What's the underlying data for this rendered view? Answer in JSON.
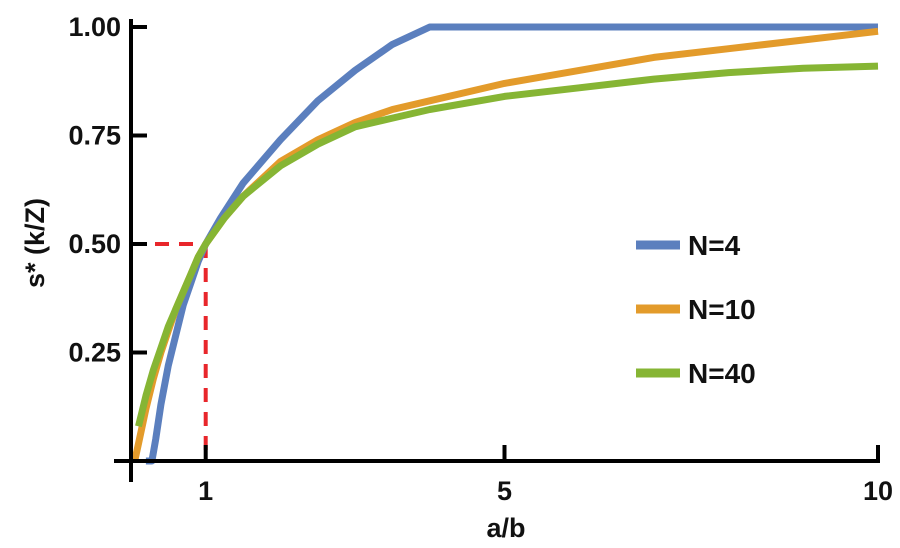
{
  "chart_data": {
    "type": "line",
    "xlabel": "a/b",
    "ylabel": "s* (k/Z)",
    "xlim": [
      0,
      10
    ],
    "ylim": [
      0,
      1.0
    ],
    "x_ticks": [
      {
        "value": 1,
        "label": "1"
      },
      {
        "value": 5,
        "label": "5"
      },
      {
        "value": 10,
        "label": "10"
      }
    ],
    "y_ticks": [
      {
        "value": 0.25,
        "label": "0.25"
      },
      {
        "value": 0.5,
        "label": "0.50"
      },
      {
        "value": 0.75,
        "label": "0.75"
      },
      {
        "value": 1.0,
        "label": "1.00"
      }
    ],
    "legend_position": "right",
    "series": [
      {
        "name": "N=4",
        "color": "#5b7fbe",
        "points": [
          [
            0.2,
            0
          ],
          [
            0.28,
            0
          ],
          [
            0.33,
            0.05
          ],
          [
            0.4,
            0.13
          ],
          [
            0.5,
            0.22
          ],
          [
            0.6,
            0.29
          ],
          [
            0.7,
            0.36
          ],
          [
            0.8,
            0.41
          ],
          [
            0.9,
            0.46
          ],
          [
            1.0,
            0.5
          ],
          [
            1.2,
            0.56
          ],
          [
            1.5,
            0.64
          ],
          [
            2.0,
            0.74
          ],
          [
            2.5,
            0.83
          ],
          [
            3.0,
            0.9
          ],
          [
            3.5,
            0.96
          ],
          [
            4.0,
            1.0
          ],
          [
            10,
            1.0
          ]
        ]
      },
      {
        "name": "N=10",
        "color": "#e39b2b",
        "points": [
          [
            0.05,
            0
          ],
          [
            0.1,
            0.04
          ],
          [
            0.2,
            0.12
          ],
          [
            0.3,
            0.19
          ],
          [
            0.4,
            0.25
          ],
          [
            0.5,
            0.3
          ],
          [
            0.6,
            0.35
          ],
          [
            0.7,
            0.39
          ],
          [
            0.8,
            0.43
          ],
          [
            0.9,
            0.47
          ],
          [
            1.0,
            0.5
          ],
          [
            1.25,
            0.56
          ],
          [
            1.5,
            0.61
          ],
          [
            2.0,
            0.69
          ],
          [
            2.5,
            0.74
          ],
          [
            3.0,
            0.78
          ],
          [
            3.5,
            0.81
          ],
          [
            4.0,
            0.83
          ],
          [
            5.0,
            0.87
          ],
          [
            6.0,
            0.9
          ],
          [
            7.0,
            0.93
          ],
          [
            8.0,
            0.95
          ],
          [
            9.0,
            0.97
          ],
          [
            10,
            0.99
          ]
        ]
      },
      {
        "name": "N=40",
        "color": "#86b534",
        "points": [
          [
            0.1,
            0.08
          ],
          [
            0.2,
            0.15
          ],
          [
            0.3,
            0.21
          ],
          [
            0.4,
            0.26
          ],
          [
            0.5,
            0.31
          ],
          [
            0.6,
            0.35
          ],
          [
            0.7,
            0.39
          ],
          [
            0.8,
            0.43
          ],
          [
            0.9,
            0.47
          ],
          [
            1.0,
            0.5
          ],
          [
            1.25,
            0.56
          ],
          [
            1.5,
            0.61
          ],
          [
            2.0,
            0.68
          ],
          [
            2.5,
            0.73
          ],
          [
            3.0,
            0.77
          ],
          [
            3.5,
            0.79
          ],
          [
            4.0,
            0.81
          ],
          [
            5.0,
            0.84
          ],
          [
            6.0,
            0.86
          ],
          [
            7.0,
            0.88
          ],
          [
            8.0,
            0.895
          ],
          [
            9.0,
            0.905
          ],
          [
            10,
            0.91
          ]
        ]
      }
    ],
    "reference_lines": {
      "color": "#e8262b",
      "x": 1.0,
      "y": 0.5
    }
  }
}
